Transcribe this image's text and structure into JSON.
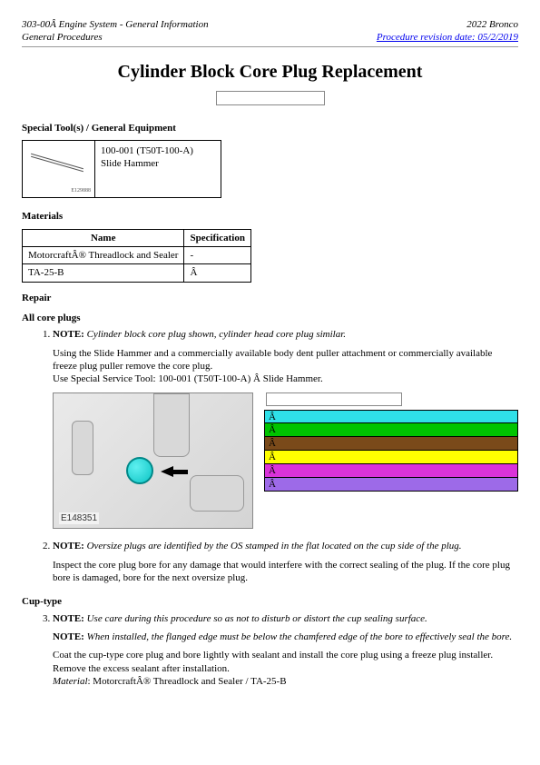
{
  "header": {
    "left_top": "303-00Â Engine System - General Information",
    "left_bottom": "General Procedures",
    "right_top": "2022 Bronco",
    "right_link": "Procedure revision date: 05/2/2019"
  },
  "title": "Cylinder Block Core Plug Replacement",
  "sections": {
    "tools_heading": "Special Tool(s) / General Equipment",
    "tool_label_line1": "100-001 (T50T-100-A)",
    "tool_label_line2": "Slide Hammer",
    "tool_img_caption": "E129888",
    "materials_heading": "Materials",
    "materials_table": {
      "col_name": "Name",
      "col_spec": "Specification",
      "row1_name": "MotorcraftÂ® Threadlock and Sealer",
      "row1_spec": "-",
      "row2_name": "TA-25-B",
      "row2_spec": "Â "
    },
    "repair_heading": "Repair",
    "all_core_heading": "All core plugs"
  },
  "steps": {
    "s1": {
      "note_label": "NOTE:",
      "note_text": "Cylinder block core plug shown, cylinder head core plug similar.",
      "body1": "Using the Slide Hammer and a commercially available body dent puller attachment or commercially available freeze plug puller remove the core plug.",
      "body2": "Use Special Service Tool: 100-001 (T50T-100-A) Â Slide Hammer.",
      "fignum": "E148351",
      "legend": {
        "rows": [
          {
            "label": "Â ",
            "color": "#2fe0e8"
          },
          {
            "label": "Â ",
            "color": "#00c400"
          },
          {
            "label": "Â ",
            "color": "#7a4a1a"
          },
          {
            "label": "Â ",
            "color": "#ffff00"
          },
          {
            "label": "Â ",
            "color": "#d933d9"
          },
          {
            "label": "Â ",
            "color": "#9d6ae8"
          }
        ]
      }
    },
    "s2": {
      "note_label": "NOTE:",
      "note_text": "Oversize plugs are identified by the OS stamped in the flat located on the cup side of the plug.",
      "body1": "Inspect the core plug bore for any damage that would interfere with the correct sealing of the plug. If the core plug bore is damaged, bore for the next oversize plug."
    },
    "cup_heading": "Cup-type",
    "s3": {
      "note_label1": "NOTE:",
      "note_text1": "Use care during this procedure so as not to disturb or distort the cup sealing surface.",
      "note_label2": "NOTE:",
      "note_text2": "When installed, the flanged edge must be below the chamfered edge of the bore to effectively seal the bore.",
      "body1": "Coat the cup-type core plug and bore lightly with sealant and install the core plug using a freeze plug installer. Remove the excess sealant after installation.",
      "mat_label": "Material",
      "mat_text": ": MotorcraftÂ® Threadlock and Sealer / TA-25-B"
    }
  }
}
